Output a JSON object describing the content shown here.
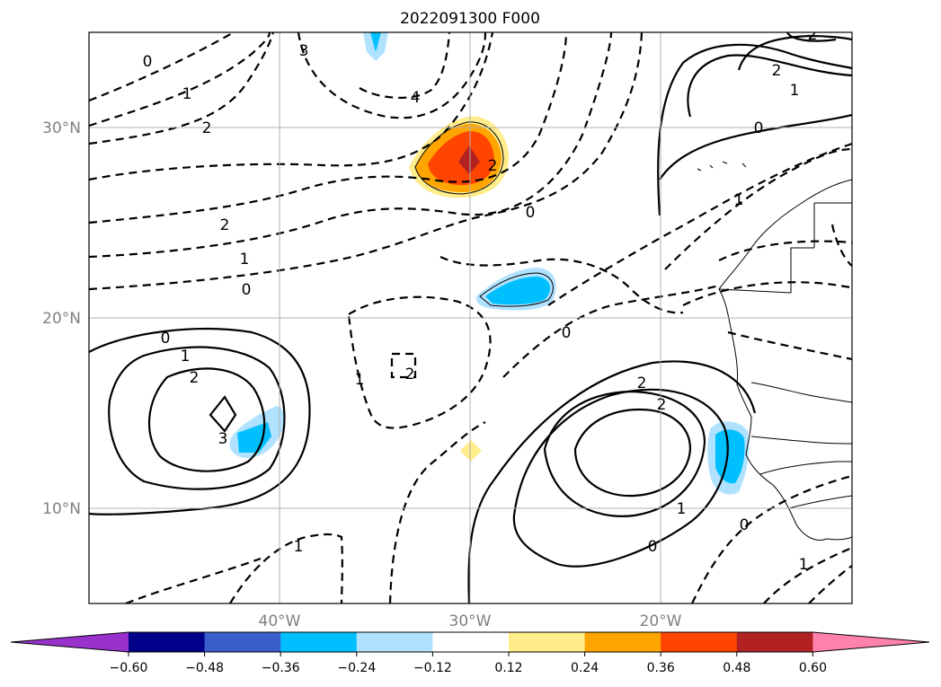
{
  "title": "2022091300 F000",
  "lat_labels": [
    "30°N",
    "20°N",
    "10°N"
  ],
  "lon_labels": [
    "40°W",
    "30°W",
    "20°W"
  ],
  "colorbar": {
    "colors": [
      "#9932cc",
      "#00008b",
      "#3a5fcd",
      "#00bfff",
      "#b0e2ff",
      "#ffffff",
      "#ffec8b",
      "#ffa500",
      "#ff4500",
      "#b22222",
      "#ff82ab"
    ],
    "ticks": [
      "−0.60",
      "−0.48",
      "−0.36",
      "−0.24",
      "−0.12",
      "0.12",
      "0.24",
      "0.36",
      "0.48",
      "0.60"
    ]
  },
  "contour_labels": [
    "0",
    "1",
    "2",
    "3",
    "4",
    "0",
    "1",
    "2",
    "3",
    "2",
    "1",
    "0",
    "2",
    "1",
    "0",
    "1",
    "2",
    "2",
    "0",
    "1",
    "2",
    "2",
    "2",
    "1",
    "0",
    "1",
    "0",
    "1",
    "0"
  ]
}
